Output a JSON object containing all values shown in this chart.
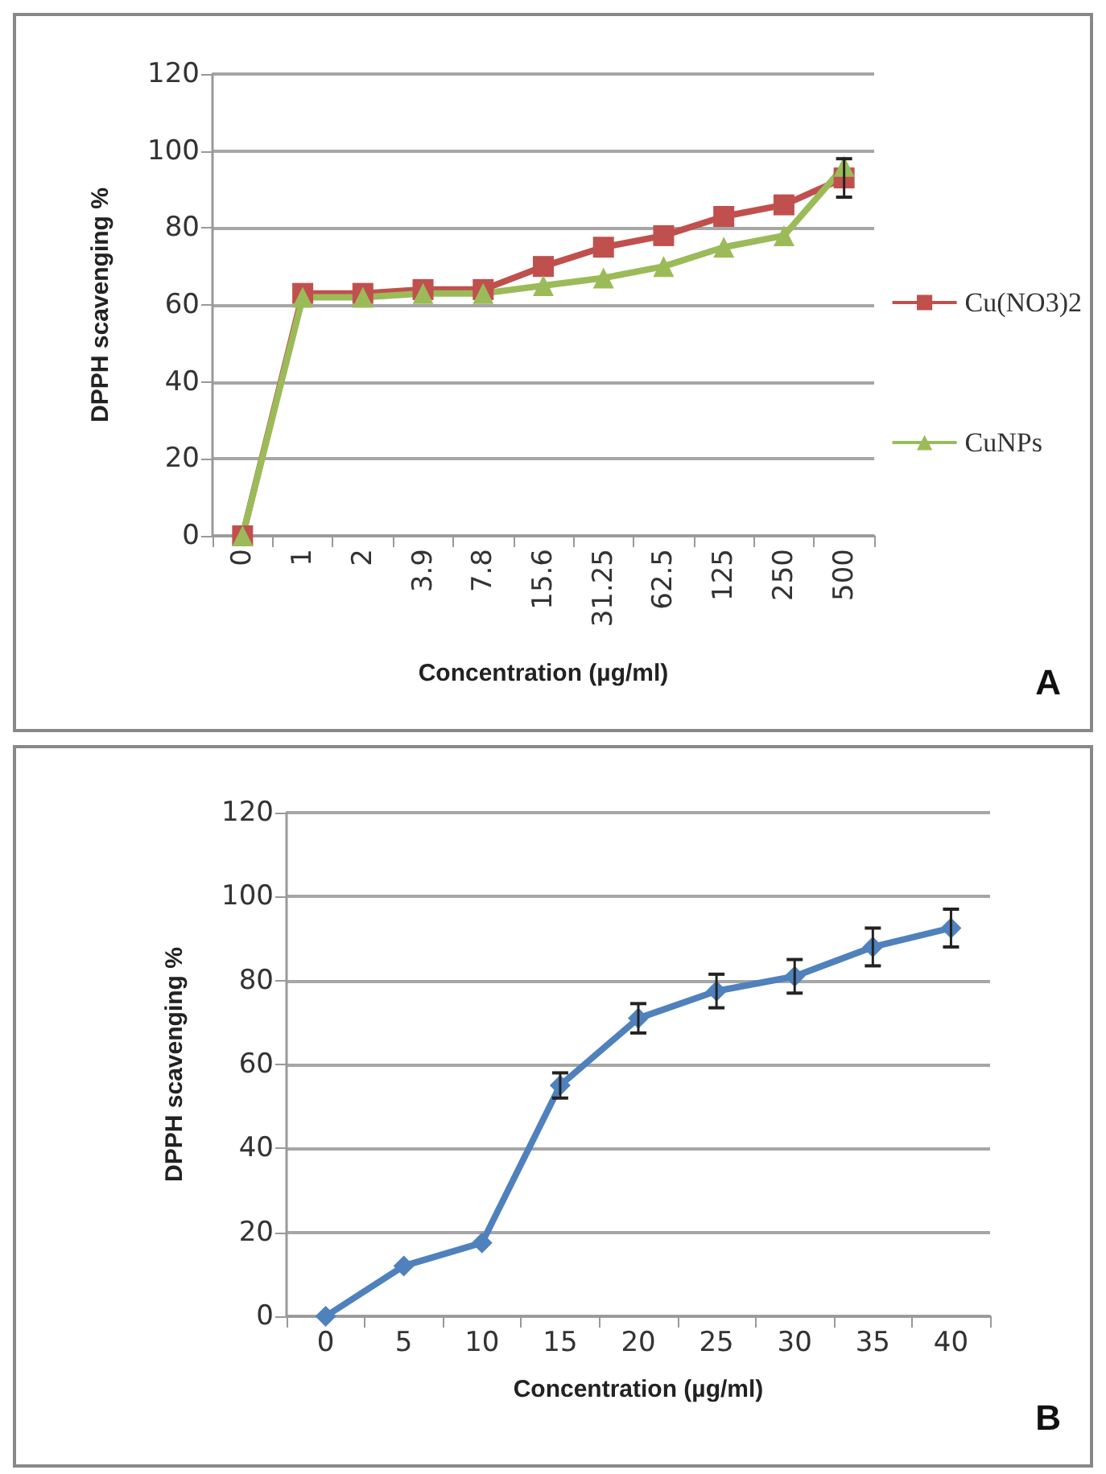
{
  "chart_data": [
    {
      "type": "line",
      "xlabel": "Concentration (µg/ml)",
      "ylabel": "DPPH scavenging %",
      "categories": [
        "0",
        "1",
        "2",
        "3.9",
        "7.8",
        "15.6",
        "31.25",
        "62.5",
        "125",
        "250",
        "500"
      ],
      "series": [
        {
          "name": "Cu(NO3)2",
          "color": "#c0504d",
          "marker": "square",
          "values": [
            0,
            63,
            63,
            64,
            64,
            70,
            75,
            78,
            83,
            86,
            93
          ],
          "errors": [
            null,
            null,
            null,
            null,
            null,
            null,
            null,
            null,
            null,
            null,
            5
          ]
        },
        {
          "name": "CuNPs",
          "color": "#9bbb59",
          "marker": "triangle",
          "values": [
            0,
            62,
            62,
            63,
            63,
            65,
            67,
            70,
            75,
            78,
            96
          ]
        }
      ],
      "ylim": [
        0,
        120
      ],
      "yticks": [
        0,
        20,
        40,
        60,
        80,
        100,
        120
      ],
      "grid": "y",
      "legend": "right",
      "annotations": [
        "A"
      ]
    },
    {
      "type": "line",
      "xlabel": "Concentration (µg/ml)",
      "ylabel": "DPPH scavenging %",
      "categories": [
        "0",
        "5",
        "10",
        "15",
        "20",
        "25",
        "30",
        "35",
        "40"
      ],
      "series": [
        {
          "color": "#4f81bd",
          "marker": "diamond",
          "values": [
            0,
            12,
            17.5,
            55,
            71,
            77.5,
            81,
            88,
            92.5
          ],
          "errors": [
            null,
            null,
            null,
            3,
            3.5,
            4,
            4,
            4.5,
            4.5
          ]
        }
      ],
      "ylim": [
        0,
        120
      ],
      "yticks": [
        0,
        20,
        40,
        60,
        80,
        100,
        120
      ],
      "grid": "y",
      "annotations": [
        "B"
      ]
    }
  ]
}
